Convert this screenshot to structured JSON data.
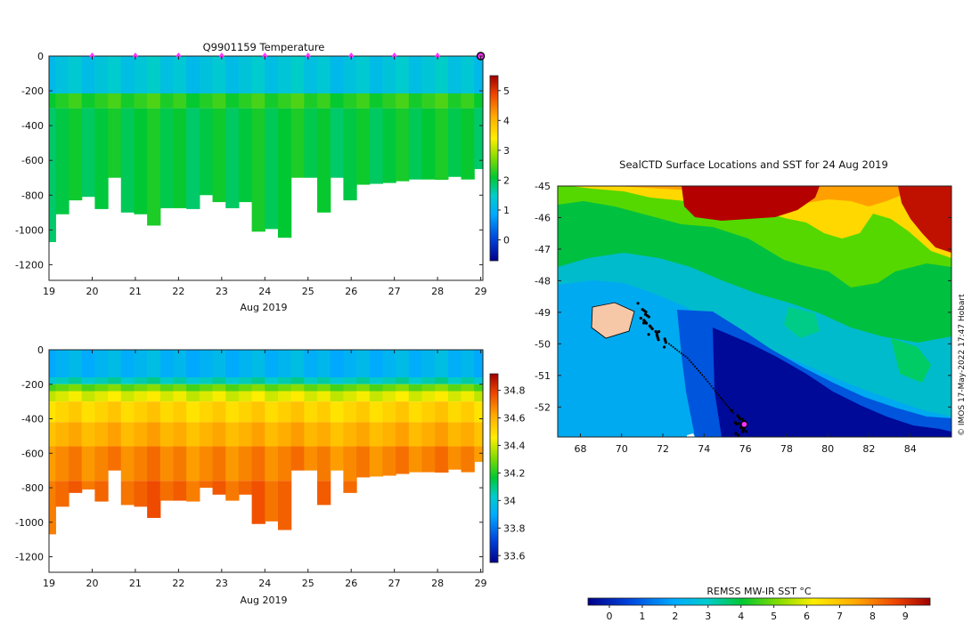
{
  "chart_data": [
    {
      "type": "heatmap",
      "title": "Q9901159  Temperature",
      "xlabel": "Aug 2019",
      "ylabel": "",
      "x_ticks": [
        "19",
        "20",
        "21",
        "22",
        "23",
        "24",
        "25",
        "26",
        "27",
        "28",
        "29"
      ],
      "y_ticks": [
        "0",
        "-200",
        "-400",
        "-600",
        "-800",
        "-1000",
        "-1200"
      ],
      "xlim": [
        19,
        29.05
      ],
      "ylim": [
        -1290,
        0
      ],
      "colorbar_ticks": [
        "0",
        "1",
        "2",
        "3",
        "4",
        "5"
      ],
      "colorbar_range": [
        -0.7,
        5.5
      ],
      "profile_max_depth": [
        1070,
        910,
        830,
        810,
        880,
        700,
        900,
        910,
        975,
        875,
        875,
        880,
        800,
        840,
        875,
        840,
        1010,
        995,
        1045,
        700,
        700,
        900,
        700,
        830,
        740,
        735,
        730,
        720,
        710,
        710,
        712,
        695,
        710,
        650
      ],
      "layers": [
        {
          "top": 0,
          "bottom": 215,
          "value": 1.3
        },
        {
          "top": 215,
          "bottom": 300,
          "value": 2.3
        },
        {
          "top": 300,
          "bottom": 2000,
          "value": 2.05
        }
      ],
      "surface_markers": [
        "20",
        "21",
        "22",
        "23",
        "24",
        "25",
        "26",
        "27",
        "28",
        "29"
      ],
      "colors": {
        "marker": "#ff33ff"
      }
    },
    {
      "type": "heatmap",
      "title": "",
      "xlabel": "Aug 2019",
      "ylabel": "",
      "x_ticks": [
        "19",
        "20",
        "21",
        "22",
        "23",
        "24",
        "25",
        "26",
        "27",
        "28",
        "29"
      ],
      "y_ticks": [
        "0",
        "-200",
        "-400",
        "-600",
        "-800",
        "-1000",
        "-1200"
      ],
      "xlim": [
        19,
        29.05
      ],
      "ylim": [
        -1290,
        0
      ],
      "colorbar_ticks": [
        "33.6",
        "33.8",
        "34",
        "34.2",
        "34.4",
        "34.6",
        "34.8"
      ],
      "colorbar_range": [
        33.55,
        34.92
      ],
      "layers": [
        {
          "top": 0,
          "bottom": 160,
          "value": 33.93
        },
        {
          "top": 160,
          "bottom": 200,
          "value": 34.05
        },
        {
          "top": 200,
          "bottom": 240,
          "value": 34.28
        },
        {
          "top": 240,
          "bottom": 300,
          "value": 34.42
        },
        {
          "top": 300,
          "bottom": 420,
          "value": 34.52
        },
        {
          "top": 420,
          "bottom": 560,
          "value": 34.6
        },
        {
          "top": 560,
          "bottom": 760,
          "value": 34.68
        },
        {
          "top": 760,
          "bottom": 2000,
          "value": 34.73
        }
      ]
    },
    {
      "type": "heatmap",
      "title": "SealCTD Surface Locations and SST for 24 Aug 2019",
      "xlabel": "",
      "ylabel": "",
      "x_ticks": [
        "68",
        "70",
        "72",
        "74",
        "76",
        "78",
        "80",
        "82",
        "84"
      ],
      "y_ticks": [
        "-45",
        "-46",
        "-47",
        "-48",
        "-49",
        "-50",
        "-51",
        "-52"
      ],
      "xlim": [
        66.9,
        86
      ],
      "ylim": [
        -52.95,
        -45
      ],
      "colorbar_label": "REMSS MW-IR SST °C",
      "colorbar_ticks": [
        "0",
        "1",
        "2",
        "3",
        "4",
        "5",
        "6",
        "7",
        "8",
        "9"
      ],
      "colorbar_range": [
        -0.65,
        9.75
      ],
      "credit": "© IMOS 17-May-2022 17:47 Hobart",
      "track": [
        {
          "lon": 71.0,
          "lat": -48.85
        },
        {
          "lon": 71.2,
          "lat": -49.3
        },
        {
          "lon": 71.6,
          "lat": -49.7
        },
        {
          "lon": 72.3,
          "lat": -50.0
        },
        {
          "lon": 73.2,
          "lat": -50.45
        },
        {
          "lon": 74.0,
          "lat": -51.05
        },
        {
          "lon": 74.8,
          "lat": -51.7
        },
        {
          "lon": 75.5,
          "lat": -52.25
        },
        {
          "lon": 75.9,
          "lat": -52.6
        },
        {
          "lon": 75.7,
          "lat": -52.85
        }
      ],
      "current_position": {
        "lon": 75.95,
        "lat": -52.55
      }
    }
  ]
}
